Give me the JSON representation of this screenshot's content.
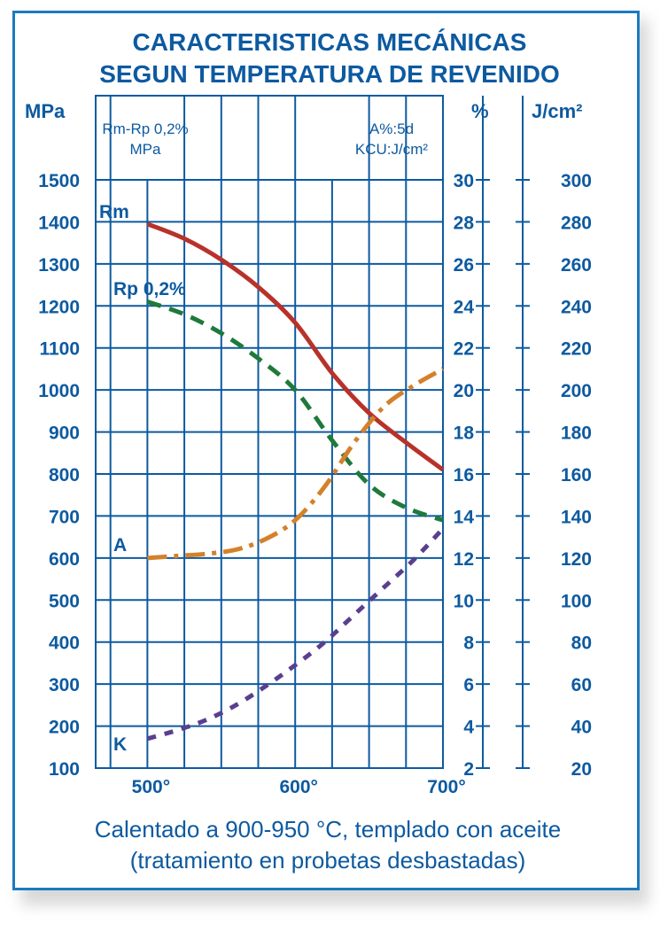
{
  "title": {
    "line1": "CARACTERISTICAS MECÁNICAS",
    "line2": "SEGUN TEMPERATURA DE REVENIDO"
  },
  "units": {
    "left": "MPa",
    "pct": "%",
    "energy": "J/cm²"
  },
  "notes": {
    "left_line1": "Rm-Rp 0,2%",
    "left_line2": "MPa",
    "right_line1": "A%:5d",
    "right_line2": "KCU:J/cm²"
  },
  "footer": {
    "line1": "Calentado a 900-950 °C, templado con aceite",
    "line2": "(tratamiento en probetas desbastadas)"
  },
  "colors": {
    "frame": "#1a7bbf",
    "text": "#0d5aa0",
    "grid": "#0d5aa0",
    "Rm": "#b8322a",
    "Rp": "#1f7a3a",
    "A": "#d4812a",
    "K": "#5a3f8f"
  },
  "chart_data": {
    "type": "line",
    "x_ticks": [
      "500°",
      "600°",
      "700°"
    ],
    "x_tick_values": [
      500,
      600,
      700
    ],
    "xlim": [
      465,
      700
    ],
    "left_axis": {
      "label": "MPa",
      "ylim": [
        100,
        1500
      ],
      "ticks": [
        1500,
        1400,
        1300,
        1200,
        1100,
        1000,
        900,
        800,
        700,
        600,
        500,
        400,
        300,
        200,
        100
      ]
    },
    "pct_axis": {
      "label": "%",
      "ylim": [
        2,
        30
      ],
      "ticks": [
        30,
        28,
        26,
        24,
        22,
        20,
        18,
        16,
        14,
        12,
        10,
        8,
        6,
        4,
        2
      ]
    },
    "energy_axis": {
      "label": "J/cm²",
      "ylim": [
        20,
        300
      ],
      "ticks": [
        300,
        280,
        260,
        240,
        220,
        200,
        180,
        160,
        140,
        120,
        100,
        80,
        60,
        40,
        20
      ]
    },
    "grid": true,
    "series": [
      {
        "name": "Rm",
        "axis": "left",
        "style": "solid",
        "x": [
          500,
          525,
          550,
          575,
          600,
          625,
          650,
          675,
          700
        ],
        "y": [
          1395,
          1360,
          1310,
          1245,
          1160,
          1040,
          945,
          875,
          810
        ]
      },
      {
        "name": "Rp 0,2%",
        "axis": "left",
        "style": "dashed",
        "x": [
          500,
          525,
          550,
          575,
          600,
          625,
          650,
          675,
          700
        ],
        "y": [
          1210,
          1180,
          1135,
          1075,
          1000,
          880,
          775,
          720,
          690
        ]
      },
      {
        "name": "A",
        "axis": "pct",
        "style": "dashdot",
        "x": [
          500,
          520,
          540,
          560,
          580,
          600,
          620,
          640,
          660,
          680,
          700
        ],
        "y": [
          12.0,
          12.1,
          12.2,
          12.4,
          12.9,
          13.8,
          15.4,
          17.5,
          19.2,
          20.2,
          21.0
        ]
      },
      {
        "name": "K",
        "axis": "energy",
        "style": "dotted",
        "x": [
          500,
          520,
          540,
          560,
          580,
          600,
          620,
          640,
          660,
          680,
          700
        ],
        "y": [
          34,
          38,
          43,
          50,
          59,
          69,
          80,
          93,
          106,
          119,
          134
        ]
      }
    ]
  }
}
